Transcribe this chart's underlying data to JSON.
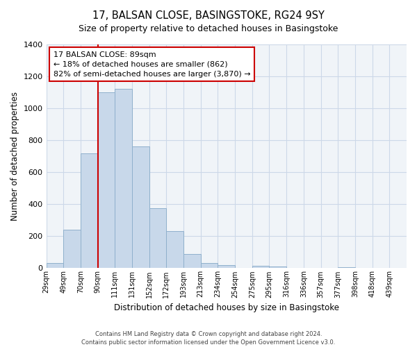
{
  "title": "17, BALSAN CLOSE, BASINGSTOKE, RG24 9SY",
  "subtitle": "Size of property relative to detached houses in Basingstoke",
  "xlabel": "Distribution of detached houses by size in Basingstoke",
  "ylabel": "Number of detached properties",
  "bin_labels": [
    "29sqm",
    "49sqm",
    "70sqm",
    "90sqm",
    "111sqm",
    "131sqm",
    "152sqm",
    "172sqm",
    "193sqm",
    "213sqm",
    "234sqm",
    "254sqm",
    "275sqm",
    "295sqm",
    "316sqm",
    "336sqm",
    "357sqm",
    "377sqm",
    "398sqm",
    "418sqm",
    "439sqm"
  ],
  "bar_heights": [
    30,
    240,
    720,
    1100,
    1120,
    760,
    375,
    230,
    90,
    30,
    20,
    0,
    15,
    10,
    0,
    0,
    0,
    5,
    0,
    0,
    0
  ],
  "bar_color": "#c8d8ea",
  "bar_edge_color": "#8fb0cc",
  "property_line_color": "#cc0000",
  "property_line_bin_idx": 3,
  "ylim": [
    0,
    1400
  ],
  "yticks": [
    0,
    200,
    400,
    600,
    800,
    1000,
    1200,
    1400
  ],
  "annotation_title": "17 BALSAN CLOSE: 89sqm",
  "annotation_line1": "← 18% of detached houses are smaller (862)",
  "annotation_line2": "82% of semi-detached houses are larger (3,870) →",
  "annotation_box_facecolor": "#ffffff",
  "annotation_box_edgecolor": "#cc0000",
  "grid_color": "#ccd8e8",
  "footer1": "Contains HM Land Registry data © Crown copyright and database right 2024.",
  "footer2": "Contains public sector information licensed under the Open Government Licence v3.0."
}
